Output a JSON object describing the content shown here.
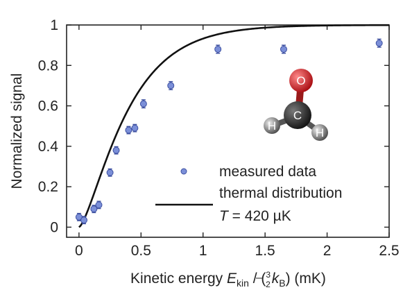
{
  "chart_data": {
    "type": "scatter",
    "xlabel_parts": {
      "prefix": "Kinetic energy ",
      "var": "E",
      "sub": "kin",
      "mid": " / (",
      "frac_num": "3",
      "frac_den": "2",
      "k": "k",
      "k_sub": "B",
      "suffix": ") (mK)"
    },
    "ylabel": "Normalized signal",
    "xlim": [
      -0.1,
      2.5
    ],
    "ylim": [
      -0.05,
      1.0
    ],
    "x_ticks": [
      0,
      0.5,
      1,
      1.5,
      2,
      2.5
    ],
    "x_tick_labels": [
      "0",
      "0.5",
      "1",
      "1.5",
      "2",
      "2.5"
    ],
    "y_ticks": [
      0,
      0.2,
      0.4,
      0.6,
      0.8,
      1
    ],
    "y_tick_labels": [
      "0",
      "0.2",
      "0.4",
      "0.6",
      "0.8",
      "1"
    ],
    "series": [
      {
        "name": "measured data",
        "kind": "points-with-errorbars",
        "color": "#7b8fd8",
        "x": [
          0.0,
          0.04,
          0.12,
          0.16,
          0.25,
          0.3,
          0.4,
          0.45,
          0.52,
          0.74,
          1.12,
          1.65,
          2.42
        ],
        "y": [
          0.05,
          0.035,
          0.09,
          0.11,
          0.27,
          0.38,
          0.48,
          0.49,
          0.61,
          0.7,
          0.88,
          0.88,
          0.91
        ],
        "yerr": [
          0.018,
          0.018,
          0.018,
          0.018,
          0.018,
          0.018,
          0.018,
          0.018,
          0.02,
          0.02,
          0.02,
          0.02,
          0.02
        ]
      },
      {
        "name": "thermal distribution",
        "kind": "line",
        "color": "#111111",
        "temperature_mK": 0.42
      }
    ],
    "legend": {
      "placement": "bottom-right",
      "line2_var": "T",
      "line2_value": " = 420 µK"
    },
    "grid": false
  },
  "molecule": {
    "atoms": [
      {
        "label": "O",
        "color": "#d9121b"
      },
      {
        "label": "C",
        "color": "#2b2b2b"
      },
      {
        "label": "H",
        "color": "#808080"
      },
      {
        "label": "H",
        "color": "#808080"
      }
    ]
  }
}
